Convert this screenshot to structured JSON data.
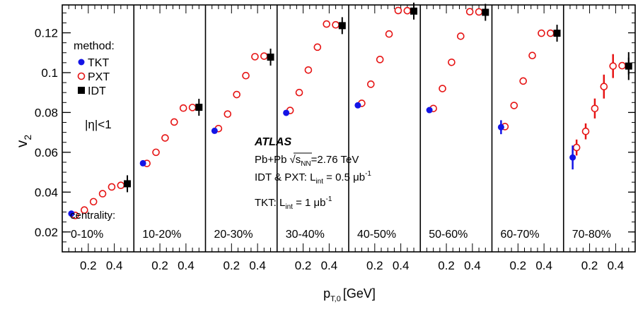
{
  "chart_data": {
    "type": "scatter",
    "xlabel": "p",
    "xlabel_sub": "T,0",
    "xlabel_unit": "[GeV]",
    "ylabel": "v",
    "ylabel_sub": "2",
    "ylim": [
      0.01,
      0.134
    ],
    "xlim": [
      0.0,
      0.55
    ],
    "y_ticks": [
      0.02,
      0.04,
      0.06,
      0.08,
      0.1,
      0.12
    ],
    "y_tick_labels": [
      "0.02",
      "0.04",
      "0.06",
      "0.08",
      "0.1",
      "0.12"
    ],
    "x_ticks": [
      0.2,
      0.4
    ],
    "x_tick_labels": [
      "0.2",
      "0.4"
    ],
    "legend": {
      "title": "method:",
      "position": "top-left",
      "entries": [
        {
          "label": "TKT",
          "marker": "filled-circle",
          "color": "#1414e6"
        },
        {
          "label": "PXT",
          "marker": "open-circle",
          "color": "#e61414"
        },
        {
          "label": "IDT",
          "marker": "filled-square",
          "color": "#000000"
        }
      ]
    },
    "eta_label": "|η|<1",
    "centrality_title": "centrality:",
    "annotations": {
      "experiment": "ATLAS",
      "system": "Pb+Pb",
      "energy_sqrt": "s",
      "energy_sub": "NN",
      "energy_value": "=2.76 TeV",
      "lumi1_prefix": "IDT & PXT:  L",
      "lumi1_sub": "int",
      "lumi1_value": " = 0.5 μb",
      "lumi1_exp": "-1",
      "lumi2_prefix": "TKT: L",
      "lumi2_sub": "int",
      "lumi2_value": " = 1 μb",
      "lumi2_exp": "-1"
    },
    "colors": {
      "tkt": "#1414e6",
      "pxt": "#e61414",
      "idt": "#000000"
    },
    "panels": [
      {
        "centrality": "0-10%",
        "tkt": [
          [
            0.07,
            0.0292
          ]
        ],
        "pxt_x": [
          0.1,
          0.17,
          0.24,
          0.31,
          0.38,
          0.45
        ],
        "pxt_y": [
          0.0283,
          0.031,
          0.0352,
          0.0392,
          0.0426,
          0.0434
        ],
        "pxt_err": [
          0,
          0,
          0,
          0,
          0,
          0
        ],
        "idt": [
          [
            0.5,
            0.0442
          ]
        ]
      },
      {
        "centrality": "10-20%",
        "tkt": [
          [
            0.07,
            0.0545
          ]
        ],
        "pxt_x": [
          0.1,
          0.17,
          0.24,
          0.31,
          0.38,
          0.45
        ],
        "pxt_y": [
          0.0544,
          0.06,
          0.0672,
          0.0752,
          0.0822,
          0.0825
        ],
        "pxt_err": [
          0,
          0,
          0,
          0,
          0,
          0
        ],
        "idt": [
          [
            0.5,
            0.0826
          ]
        ]
      },
      {
        "centrality": "20-30%",
        "tkt": [
          [
            0.07,
            0.0708
          ]
        ],
        "pxt_x": [
          0.1,
          0.17,
          0.24,
          0.31,
          0.38,
          0.45
        ],
        "pxt_y": [
          0.0719,
          0.0792,
          0.089,
          0.0985,
          0.108,
          0.1083
        ],
        "pxt_err": [
          0,
          0,
          0,
          0,
          0,
          0
        ],
        "idt": [
          [
            0.5,
            0.1078
          ]
        ]
      },
      {
        "centrality": "30-40%",
        "tkt": [
          [
            0.07,
            0.0798
          ]
        ],
        "pxt_x": [
          0.1,
          0.17,
          0.24,
          0.31,
          0.38,
          0.45
        ],
        "pxt_y": [
          0.081,
          0.09,
          0.1013,
          0.1128,
          0.1244,
          0.124
        ],
        "pxt_err": [
          0,
          0,
          0,
          0,
          0,
          0
        ],
        "idt": [
          [
            0.5,
            0.1236
          ]
        ]
      },
      {
        "centrality": "40-50%",
        "tkt": [
          [
            0.07,
            0.0836
          ]
        ],
        "pxt_x": [
          0.1,
          0.17,
          0.24,
          0.31,
          0.38,
          0.45
        ],
        "pxt_y": [
          0.0846,
          0.0942,
          0.1066,
          0.1194,
          0.1312,
          0.1311
        ],
        "pxt_err": [
          0,
          0,
          0,
          0,
          0,
          0
        ],
        "idt": [
          [
            0.5,
            0.1309
          ]
        ]
      },
      {
        "centrality": "50-60%",
        "tkt": [
          [
            0.07,
            0.0812
          ]
        ],
        "pxt_x": [
          0.1,
          0.17,
          0.24,
          0.31,
          0.38,
          0.45
        ],
        "pxt_y": [
          0.082,
          0.092,
          0.1052,
          0.1183,
          0.1306,
          0.1305
        ],
        "pxt_err": [
          0,
          0,
          0,
          0,
          0,
          0
        ],
        "idt": [
          [
            0.5,
            0.1303
          ]
        ]
      },
      {
        "centrality": "60-70%",
        "tkt": [
          [
            0.07,
            0.0726,
            0.0035
          ]
        ],
        "pxt_x": [
          0.1,
          0.17,
          0.24,
          0.31,
          0.38,
          0.45
        ],
        "pxt_y": [
          0.0729,
          0.0835,
          0.0958,
          0.1086,
          0.1198,
          0.1198
        ],
        "pxt_err": [
          0,
          0,
          0,
          0,
          0,
          0
        ],
        "idt": [
          [
            0.5,
            0.1198
          ]
        ]
      },
      {
        "centrality": "70-80%",
        "tkt": [
          [
            0.07,
            0.0574,
            0.006
          ]
        ],
        "pxt_x": [
          0.1,
          0.17,
          0.24,
          0.31,
          0.38,
          0.45
        ],
        "pxt_y": [
          0.0624,
          0.0705,
          0.082,
          0.093,
          0.1033,
          0.1035
        ],
        "pxt_err": [
          0.004,
          0.004,
          0.005,
          0.006,
          0.006,
          0
        ],
        "idt": [
          [
            0.5,
            0.1033,
            0.007
          ]
        ]
      }
    ]
  }
}
